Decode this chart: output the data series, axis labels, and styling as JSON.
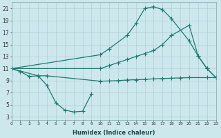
{
  "xlabel": "Humidex (Indice chaleur)",
  "background_color": "#cde8ec",
  "grid_color": "#b0cfd4",
  "line_color": "#1a7a6e",
  "x_ticks": [
    0,
    1,
    2,
    3,
    4,
    5,
    6,
    7,
    8,
    9,
    10,
    11,
    12,
    13,
    14,
    15,
    16,
    17,
    18,
    19,
    20,
    21,
    22,
    23
  ],
  "y_ticks": [
    3,
    5,
    7,
    9,
    11,
    13,
    15,
    17,
    19,
    21
  ],
  "xlim": [
    0,
    23
  ],
  "ylim": [
    2.5,
    22
  ],
  "curve_dip_x": [
    0,
    1,
    2,
    3,
    4,
    5,
    6,
    7,
    8,
    9
  ],
  "curve_dip_y": [
    11,
    10.5,
    9.7,
    9.8,
    8.2,
    5.3,
    4.1,
    3.8,
    3.9,
    6.8
  ],
  "curve_peak_x": [
    0,
    10,
    11,
    13,
    14,
    15,
    16,
    17,
    18,
    20,
    21,
    22,
    23
  ],
  "curve_peak_y": [
    11,
    13.3,
    14.3,
    16.5,
    18.5,
    21.0,
    21.3,
    20.8,
    19.3,
    15.6,
    13.1,
    11.0,
    9.5
  ],
  "curve_diag_x": [
    0,
    10,
    11,
    12,
    13,
    14,
    15,
    16,
    17,
    18,
    20,
    21,
    22,
    23
  ],
  "curve_diag_y": [
    11,
    11.0,
    11.5,
    12.0,
    12.5,
    13.0,
    13.5,
    14.0,
    15.0,
    16.5,
    18.2,
    13.1,
    11.0,
    9.5
  ],
  "curve_flat_x": [
    0,
    3,
    4,
    10,
    11,
    12,
    13,
    14,
    15,
    16,
    17,
    18,
    19,
    20,
    22,
    23
  ],
  "curve_flat_y": [
    11,
    9.8,
    9.8,
    8.9,
    8.95,
    9.0,
    9.1,
    9.15,
    9.2,
    9.3,
    9.35,
    9.4,
    9.45,
    9.5,
    9.5,
    9.5
  ]
}
